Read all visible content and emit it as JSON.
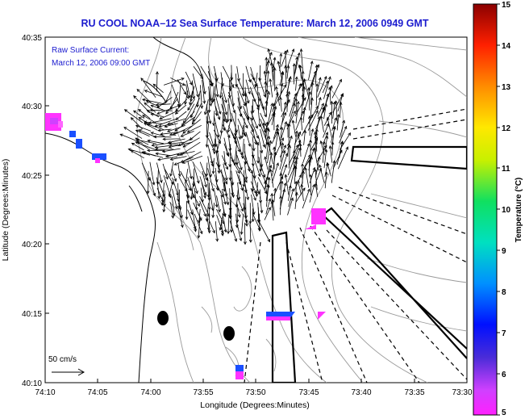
{
  "title": "RU COOL   NOAA–12  Sea Surface Temperature:  March 12, 2006 0949 GMT",
  "legend": {
    "line1": "Raw Surface Current:",
    "line2": "March 12, 2006 09:00 GMT"
  },
  "axes": {
    "ylabel": "Latitude (Degrees:Minutes)",
    "xlabel": "Longitude (Degrees:Minutes)",
    "y_ticks": [
      "40:35",
      "40:30",
      "40:25",
      "40:20",
      "40:15",
      "40:10"
    ],
    "x_ticks": [
      "74:10",
      "74:05",
      "74:00",
      "73:55",
      "73:50",
      "73:45",
      "73:40",
      "73:35",
      "73:30"
    ]
  },
  "scale_bar": {
    "label": "50 cm/s"
  },
  "colorbar": {
    "label": "Temperature (°C)",
    "ticks": [
      "15",
      "14",
      "13",
      "12",
      "11",
      "10",
      "9",
      "8",
      "7",
      "6",
      "5"
    ],
    "range": [
      5,
      15
    ]
  },
  "colors": {
    "title": "#1c1ccf",
    "contour": "#9a9a9a",
    "coast": "#000000",
    "sst_cool": "#ff33ff",
    "sst_blue": "#1a4fff"
  }
}
